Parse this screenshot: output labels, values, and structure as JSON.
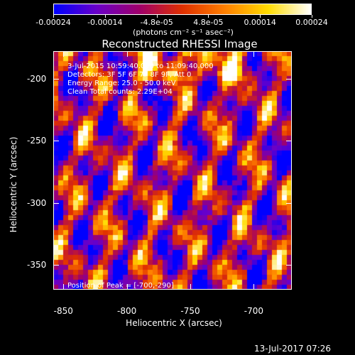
{
  "colorbar": {
    "ticks": [
      "-0.00024",
      "-0.00014",
      "-4.8e-05",
      "4.8e-05",
      "0.00014",
      "0.00024"
    ],
    "units": "(photons cm⁻² s⁻¹ asec⁻²)"
  },
  "title": "Reconstructed RHESSI Image",
  "annotations": {
    "time": "3-Jul-2015 10:59:40.000 to 11:09:40.000",
    "detectors": "Detectors: 3F 5F 6F 7F 8F 9F, Att 0",
    "energy": "Energy Range: 25.0 - 50.0 keV",
    "clean": "Clean     Total counts: 2.29E+04",
    "peak": "Position of Peak = [-700,-290]"
  },
  "x_axis": {
    "title": "Heliocentric X (arcsec)",
    "ticks": [
      "-850",
      "-800",
      "-750",
      "-700"
    ]
  },
  "y_axis": {
    "title": "Heliocentric Y (arcsec)",
    "ticks": [
      "-200",
      "-250",
      "-300",
      "-350"
    ]
  },
  "date_stamp": "13-Jul-2017 07:26",
  "chart_data": {
    "type": "heatmap",
    "title": "Reconstructed RHESSI Image",
    "xlabel": "Heliocentric X (arcsec)",
    "ylabel": "Heliocentric Y (arcsec)",
    "xlim": [
      -858,
      -670
    ],
    "ylim": [
      -370,
      -178
    ],
    "x_ticks": [
      -850,
      -800,
      -750,
      -700
    ],
    "y_ticks": [
      -200,
      -250,
      -300,
      -350
    ],
    "colorbar_range": [
      -0.00024,
      0.00024
    ],
    "peak_position": [
      -700,
      -290
    ],
    "colormap": [
      "#0000ff",
      "#6a00c8",
      "#a0006a",
      "#e03000",
      "#ff8000",
      "#ffdc00",
      "#ffffff"
    ]
  }
}
